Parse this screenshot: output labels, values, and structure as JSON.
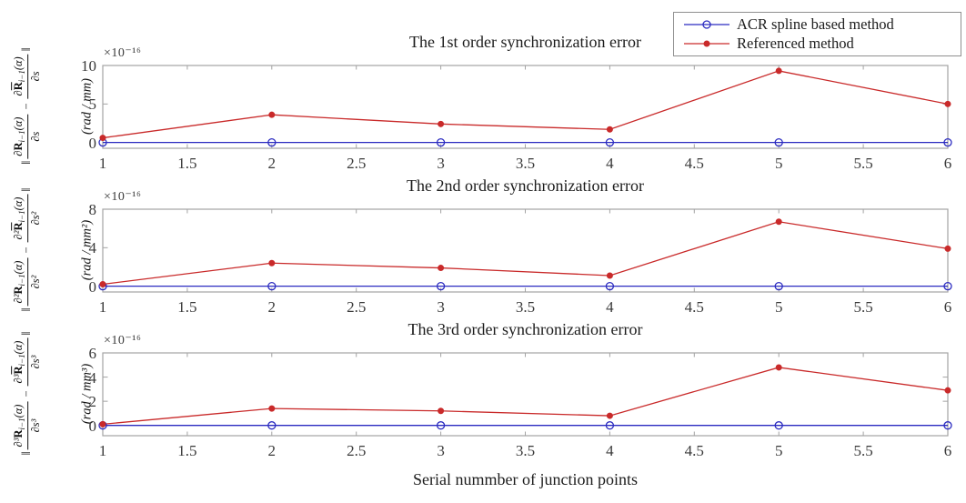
{
  "figure": {
    "xlabel": "Serial nummber of junction points",
    "frame_color": "#a3a3a3",
    "tick_label_color": "#3a3a3a"
  },
  "legend": {
    "items": [
      {
        "label": "ACR spline based method",
        "color": "#2b2bc0",
        "marker": "open-circle"
      },
      {
        "label": "Referenced method",
        "color": "#c92a2a",
        "marker": "filled-dot"
      }
    ]
  },
  "chart_data": [
    {
      "type": "line",
      "title": "The 1st order synchronization error",
      "exponent_label": "×10⁻¹⁶",
      "x": [
        1,
        2,
        3,
        4,
        5,
        6
      ],
      "xticks": [
        "1",
        "1.5",
        "2",
        "2.5",
        "3",
        "3.5",
        "4",
        "4.5",
        "5",
        "5.5",
        "6"
      ],
      "yticks": [
        "0",
        "5",
        "10"
      ],
      "ylim": [
        -0.75,
        10
      ],
      "grid": false,
      "series": [
        {
          "name": "ACR spline based method",
          "color": "#2b2bc0",
          "marker": "open-circle",
          "values": [
            0,
            0,
            0,
            0,
            0,
            0
          ]
        },
        {
          "name": "Referenced method",
          "color": "#c92a2a",
          "marker": "filled-dot",
          "values": [
            0.6,
            3.6,
            2.4,
            1.7,
            9.3,
            5.0
          ]
        }
      ],
      "ylabel": {
        "lnorm": "‖",
        "dpre1": "∂",
        "R1": "R",
        "sub1": "i−1",
        "arg1": "(α)",
        "den1": "∂s",
        "minus": "−",
        "dpre2": "∂",
        "R2": "R",
        "sub2": "i−1",
        "arg2": "(α)",
        "den2": "∂s",
        "rnorm": "‖",
        "unit": "(rad / mm)"
      }
    },
    {
      "type": "line",
      "title": "The 2nd order synchronization error",
      "exponent_label": "×10⁻¹⁶",
      "x": [
        1,
        2,
        3,
        4,
        5,
        6
      ],
      "xticks": [
        "1",
        "1.5",
        "2",
        "2.5",
        "3",
        "3.5",
        "4",
        "4.5",
        "5",
        "5.5",
        "6"
      ],
      "yticks": [
        "0",
        "4",
        "8"
      ],
      "ylim": [
        -0.6,
        8
      ],
      "grid": false,
      "series": [
        {
          "name": "ACR spline based method",
          "color": "#2b2bc0",
          "marker": "open-circle",
          "values": [
            0,
            0,
            0,
            0,
            0,
            0
          ]
        },
        {
          "name": "Referenced method",
          "color": "#c92a2a",
          "marker": "filled-dot",
          "values": [
            0.2,
            2.4,
            1.9,
            1.1,
            6.7,
            3.9
          ]
        }
      ],
      "ylabel": {
        "lnorm": "‖",
        "dpre1": "∂²",
        "R1": "R",
        "sub1": "i−1",
        "arg1": "(α)",
        "den1": "∂s²",
        "minus": "−",
        "dpre2": "∂²",
        "R2": "R",
        "sub2": "i−1",
        "arg2": "(α)",
        "den2": "∂s²",
        "rnorm": "‖",
        "unit": "(rad / mm²)"
      }
    },
    {
      "type": "line",
      "title": "The 3rd order synchronization error",
      "exponent_label": "×10⁻¹⁶",
      "x": [
        1,
        2,
        3,
        4,
        5,
        6
      ],
      "xticks": [
        "1",
        "1.5",
        "2",
        "2.5",
        "3",
        "3.5",
        "4",
        "4.5",
        "5",
        "5.5",
        "6"
      ],
      "yticks": [
        "0",
        "2",
        "4",
        "6"
      ],
      "ylim": [
        -0.85,
        6
      ],
      "grid": false,
      "series": [
        {
          "name": "ACR spline based method",
          "color": "#2b2bc0",
          "marker": "open-circle",
          "values": [
            0,
            0,
            0,
            0,
            0,
            0
          ]
        },
        {
          "name": "Referenced method",
          "color": "#c92a2a",
          "marker": "filled-dot",
          "values": [
            0.1,
            1.4,
            1.2,
            0.8,
            4.8,
            2.9
          ]
        }
      ],
      "ylabel": {
        "lnorm": "‖",
        "dpre1": "∂³",
        "R1": "R",
        "sub1": "i−1",
        "arg1": "(α)",
        "den1": "∂s³",
        "minus": "−",
        "dpre2": "∂³",
        "R2": "R",
        "sub2": "i−1",
        "arg2": "(α)",
        "den2": "∂s³",
        "rnorm": "‖",
        "unit": "(rad / mm³)"
      }
    }
  ]
}
